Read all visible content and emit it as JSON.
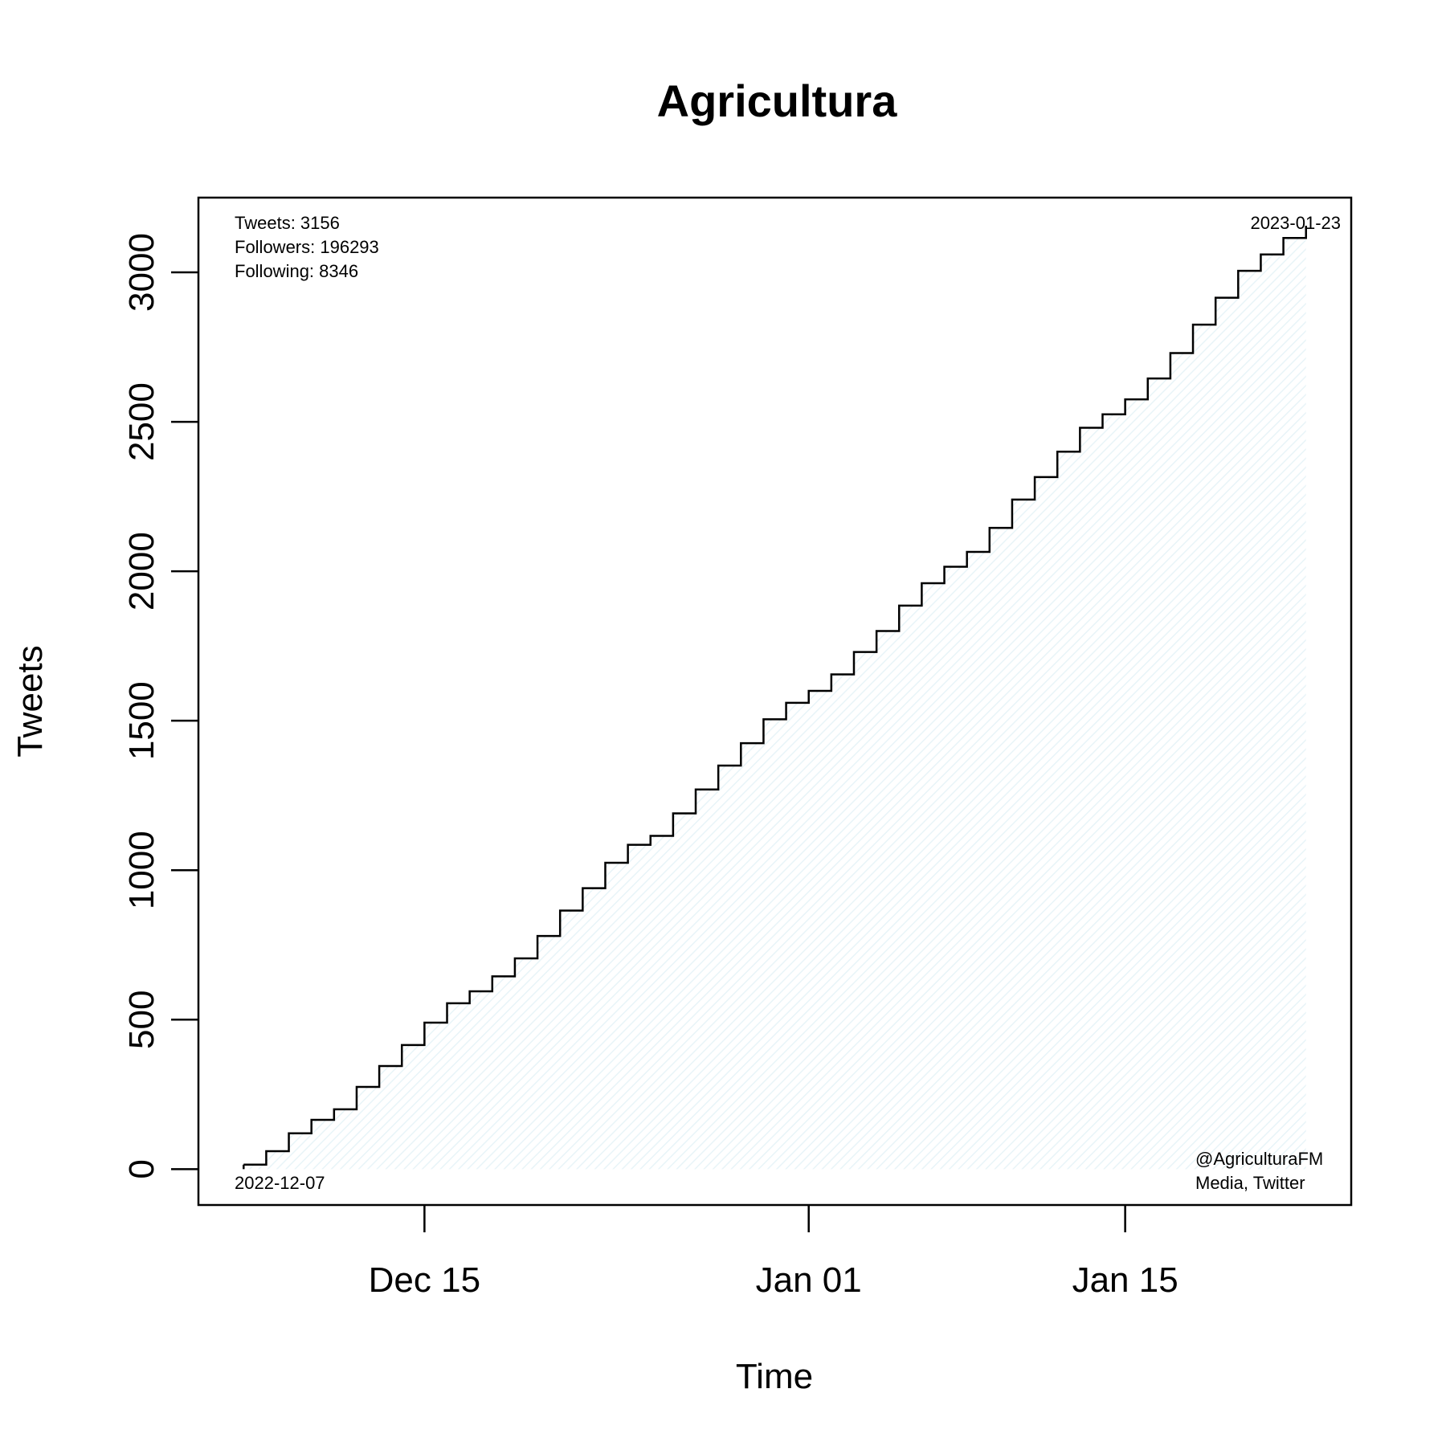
{
  "chart_data": {
    "type": "line",
    "title": "Agricultura",
    "xlabel": "Time",
    "ylabel": "Tweets",
    "x_ticks": [
      "2022-12-15",
      "2023-01-01",
      "2023-01-15"
    ],
    "x_tick_labels": [
      "Dec 15",
      "Jan 01",
      "Jan 15"
    ],
    "y_ticks": [
      0,
      500,
      1000,
      1500,
      2000,
      2500,
      3000
    ],
    "y_tick_labels": [
      "0",
      "500",
      "1000",
      "1500",
      "2000",
      "2500",
      "3000"
    ],
    "xlim": [
      "2022-12-05",
      "2023-01-25"
    ],
    "ylim": [
      -120,
      3250
    ],
    "grid": false,
    "fill_color": "#e8f4f8",
    "line_color": "#000000",
    "series": [
      {
        "step": true,
        "dates": [
          "2022-12-07",
          "2022-12-08",
          "2022-12-09",
          "2022-12-10",
          "2022-12-11",
          "2022-12-12",
          "2022-12-13",
          "2022-12-14",
          "2022-12-15",
          "2022-12-16",
          "2022-12-17",
          "2022-12-18",
          "2022-12-19",
          "2022-12-20",
          "2022-12-21",
          "2022-12-22",
          "2022-12-23",
          "2022-12-24",
          "2022-12-25",
          "2022-12-26",
          "2022-12-27",
          "2022-12-28",
          "2022-12-29",
          "2022-12-30",
          "2022-12-31",
          "2023-01-01",
          "2023-01-02",
          "2023-01-03",
          "2023-01-04",
          "2023-01-05",
          "2023-01-06",
          "2023-01-07",
          "2023-01-08",
          "2023-01-09",
          "2023-01-10",
          "2023-01-11",
          "2023-01-12",
          "2023-01-13",
          "2023-01-14",
          "2023-01-15",
          "2023-01-16",
          "2023-01-17",
          "2023-01-18",
          "2023-01-19",
          "2023-01-20",
          "2023-01-21",
          "2023-01-22",
          "2023-01-23"
        ],
        "values": [
          15,
          60,
          120,
          165,
          200,
          275,
          345,
          415,
          490,
          555,
          595,
          645,
          705,
          780,
          865,
          940,
          1025,
          1085,
          1115,
          1190,
          1270,
          1350,
          1425,
          1505,
          1560,
          1600,
          1655,
          1730,
          1800,
          1885,
          1960,
          2015,
          2065,
          2145,
          2240,
          2315,
          2400,
          2480,
          2525,
          2575,
          2645,
          2730,
          2825,
          2915,
          3005,
          3060,
          3115,
          3156
        ]
      }
    ],
    "annotations": {
      "stats": [
        "Tweets: 3156",
        "Followers: 196293",
        "Following: 8346"
      ],
      "start_date": "2022-12-07",
      "end_date": "2023-01-23",
      "handle": "@AgriculturaFM",
      "source": "Media, Twitter"
    }
  }
}
